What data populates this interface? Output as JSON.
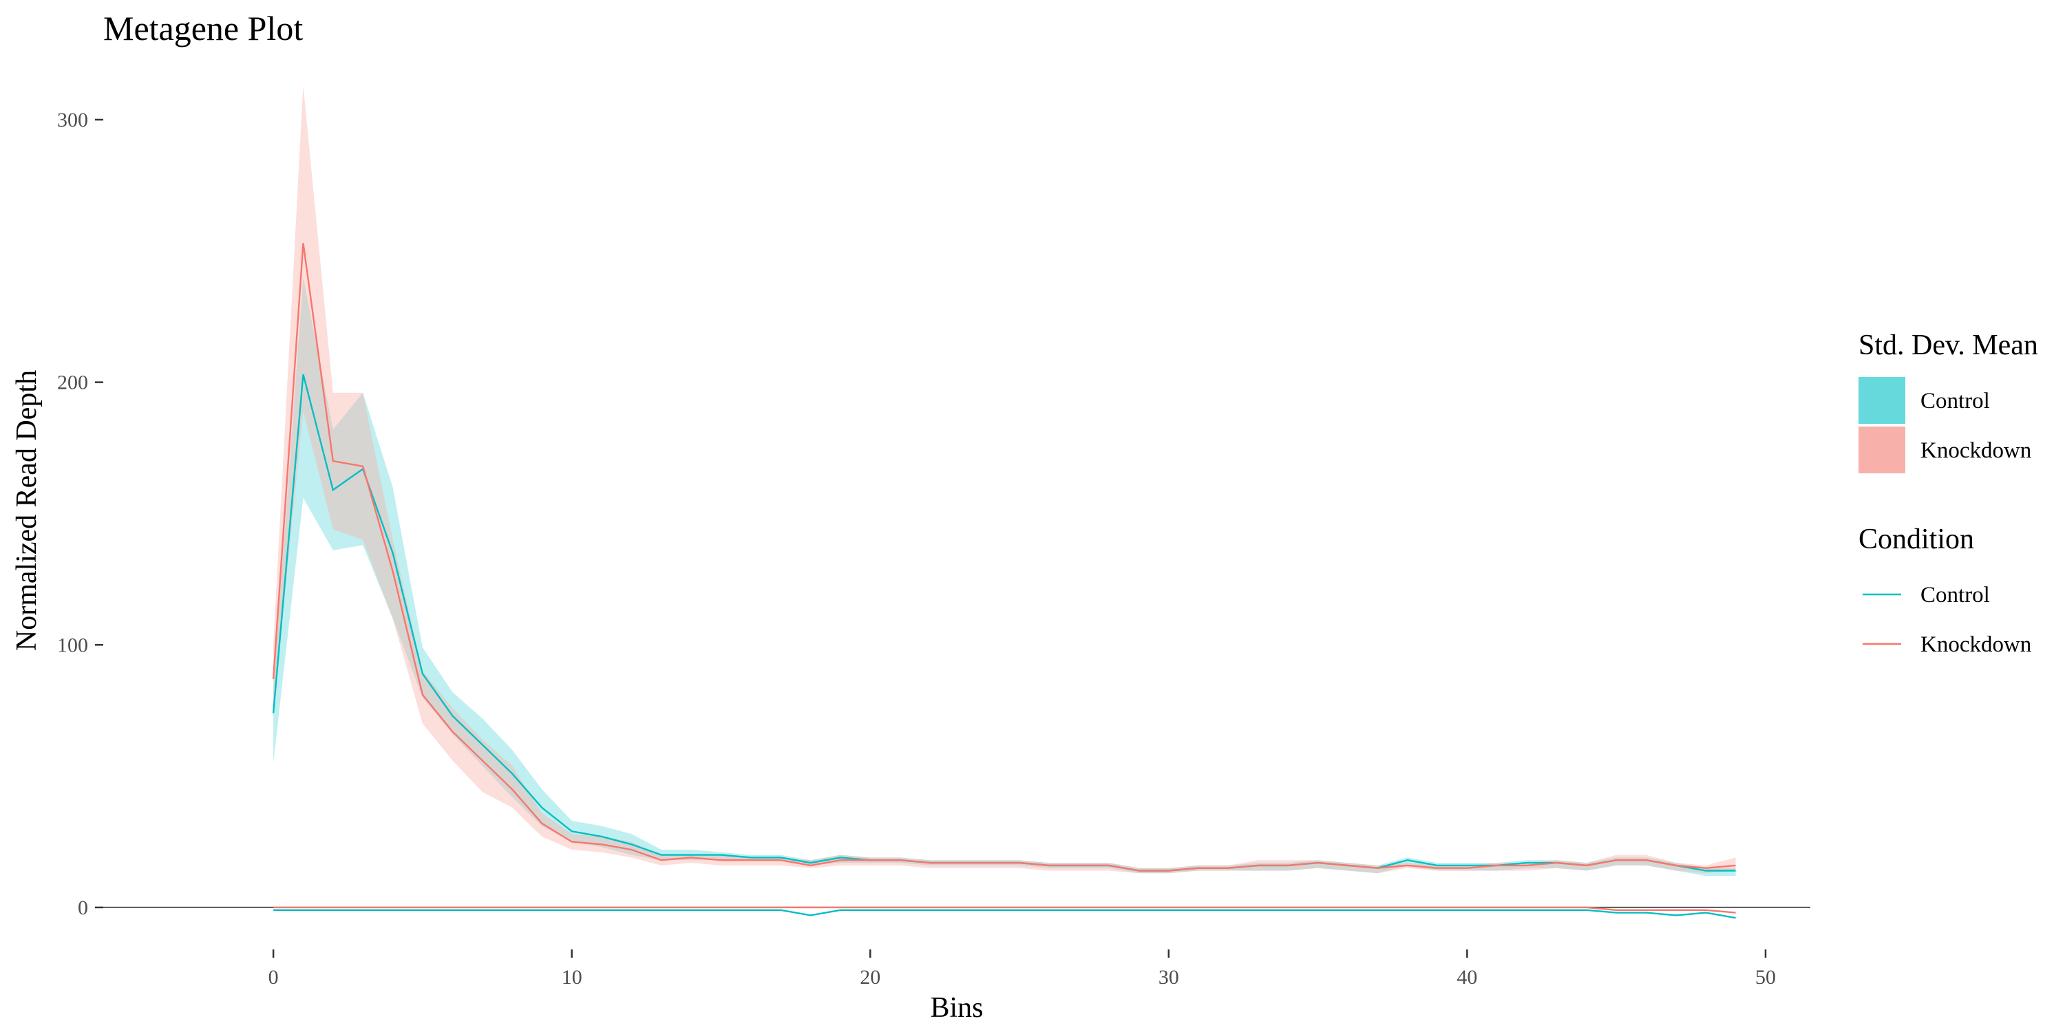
{
  "chart_data": {
    "type": "line",
    "title": "Metagene Plot",
    "xlabel": "Bins",
    "ylabel": "Normalized Read Depth",
    "xlim": [
      -5.7,
      51.5
    ],
    "ylim": [
      -16,
      322
    ],
    "xticks": [
      0,
      10,
      20,
      30,
      40,
      50
    ],
    "yticks": [
      0,
      100,
      200,
      300
    ],
    "x": [
      0,
      1,
      2,
      3,
      4,
      5,
      6,
      7,
      8,
      9,
      10,
      11,
      12,
      13,
      14,
      15,
      16,
      17,
      18,
      19,
      20,
      21,
      22,
      23,
      24,
      25,
      26,
      27,
      28,
      29,
      30,
      31,
      32,
      33,
      34,
      35,
      36,
      37,
      38,
      39,
      40,
      41,
      42,
      43,
      44,
      45,
      46,
      47,
      48,
      49
    ],
    "reference_line": 0,
    "grid": false,
    "legend_position": "right",
    "series": [
      {
        "name": "Control",
        "color": "#00BFC4",
        "fill": "#66D9DC",
        "values": [
          74,
          203,
          159,
          167,
          135,
          89,
          73,
          62,
          51,
          38,
          29,
          27,
          24,
          20,
          20,
          20,
          19,
          19,
          17,
          19,
          18,
          18,
          17,
          17,
          17,
          17,
          16,
          16,
          16,
          14,
          14,
          15,
          15,
          16,
          16,
          17,
          16,
          15,
          18,
          16,
          16,
          16,
          17,
          17,
          16,
          18,
          18,
          16,
          14,
          14
        ],
        "upper": [
          84,
          240,
          182,
          196,
          160,
          99,
          82,
          72,
          60,
          45,
          33,
          31,
          28,
          22,
          22,
          21,
          20,
          20,
          18,
          20,
          19,
          19,
          18,
          18,
          18,
          18,
          17,
          17,
          17,
          15,
          15,
          16,
          16,
          17,
          17,
          18,
          17,
          16,
          19,
          17,
          17,
          17,
          18,
          18,
          17,
          19,
          19,
          17,
          15,
          15
        ],
        "lower": [
          55,
          156,
          136,
          138,
          110,
          80,
          66,
          54,
          42,
          31,
          25,
          23,
          20,
          18,
          18,
          18,
          18,
          18,
          16,
          17,
          17,
          17,
          16,
          16,
          16,
          16,
          15,
          15,
          15,
          13,
          13,
          14,
          14,
          14,
          14,
          15,
          14,
          13,
          16,
          14,
          14,
          14,
          15,
          15,
          14,
          16,
          16,
          14,
          12,
          12
        ],
        "mean_line": [
          -1,
          -1,
          -1,
          -1,
          -1,
          -1,
          -1,
          -1,
          -1,
          -1,
          -1,
          -1,
          -1,
          -1,
          -1,
          -1,
          -1,
          -1,
          -3,
          -1,
          -1,
          -1,
          -1,
          -1,
          -1,
          -1,
          -1,
          -1,
          -1,
          -1,
          -1,
          -1,
          -1,
          -1,
          -1,
          -1,
          -1,
          -1,
          -1,
          -1,
          -1,
          -1,
          -1,
          -1,
          -1,
          -2,
          -2,
          -3,
          -2,
          -4
        ]
      },
      {
        "name": "Knockdown",
        "color": "#F8766D",
        "fill": "#F8B0AA",
        "values": [
          87,
          253,
          170,
          168,
          128,
          81,
          67,
          56,
          45,
          32,
          25,
          24,
          22,
          18,
          19,
          18,
          18,
          18,
          16,
          18,
          18,
          18,
          17,
          17,
          17,
          17,
          16,
          16,
          16,
          14,
          14,
          15,
          15,
          16,
          16,
          17,
          16,
          15,
          16,
          15,
          15,
          16,
          16,
          17,
          16,
          18,
          18,
          16,
          15,
          16
        ],
        "upper": [
          100,
          313,
          196,
          196,
          140,
          90,
          76,
          64,
          54,
          36,
          28,
          27,
          25,
          20,
          20,
          20,
          19,
          19,
          18,
          20,
          19,
          19,
          18,
          18,
          18,
          18,
          17,
          17,
          17,
          15,
          15,
          16,
          16,
          18,
          18,
          18,
          17,
          16,
          17,
          16,
          16,
          17,
          17,
          18,
          17,
          20,
          20,
          17,
          16,
          19
        ],
        "lower": [
          75,
          189,
          144,
          140,
          110,
          70,
          56,
          44,
          38,
          27,
          22,
          21,
          19,
          16,
          17,
          16,
          16,
          16,
          15,
          16,
          16,
          16,
          15,
          15,
          15,
          15,
          14,
          14,
          14,
          13,
          13,
          14,
          14,
          14,
          14,
          15,
          14,
          13,
          15,
          14,
          14,
          14,
          14,
          15,
          14,
          16,
          16,
          14,
          13,
          14
        ],
        "mean_line": [
          0,
          0,
          0,
          0,
          0,
          0,
          0,
          0,
          0,
          0,
          0,
          0,
          0,
          0,
          0,
          0,
          0,
          0,
          0,
          0,
          0,
          0,
          0,
          0,
          0,
          0,
          0,
          0,
          0,
          0,
          0,
          0,
          0,
          0,
          0,
          0,
          0,
          0,
          0,
          0,
          0,
          0,
          0,
          0,
          0,
          -1,
          -1,
          -1,
          -1,
          -2
        ]
      }
    ],
    "legends": [
      {
        "title": "Std. Dev. Mean",
        "kind": "fill",
        "entries": [
          "Control",
          "Knockdown"
        ]
      },
      {
        "title": "Condition",
        "kind": "line",
        "entries": [
          "Control",
          "Knockdown"
        ]
      }
    ]
  }
}
